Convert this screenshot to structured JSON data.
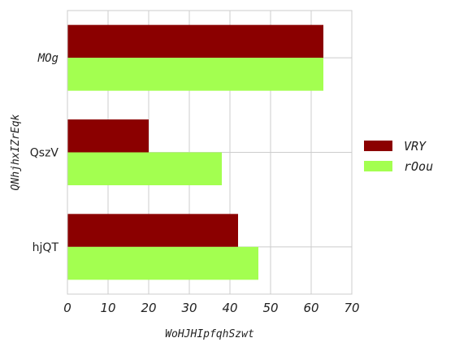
{
  "chart_data": {
    "type": "bar",
    "orientation": "horizontal",
    "title": "",
    "xlabel": "WoHJHIpfqhSzwt",
    "ylabel": "QNhjhxIZrEqk",
    "categories": [
      "MOg",
      "QszV",
      "hjQT"
    ],
    "series": [
      {
        "name": "VRY",
        "values": [
          63,
          20,
          42
        ],
        "color": "#8b0000"
      },
      {
        "name": "rOou",
        "values": [
          63,
          38,
          47
        ],
        "color": "#a3ff50"
      }
    ],
    "xlim": [
      0,
      70
    ],
    "xticks": [
      "0",
      "10",
      "20",
      "30",
      "40",
      "50",
      "60",
      "70"
    ],
    "grid": true,
    "legend_position": "right"
  }
}
